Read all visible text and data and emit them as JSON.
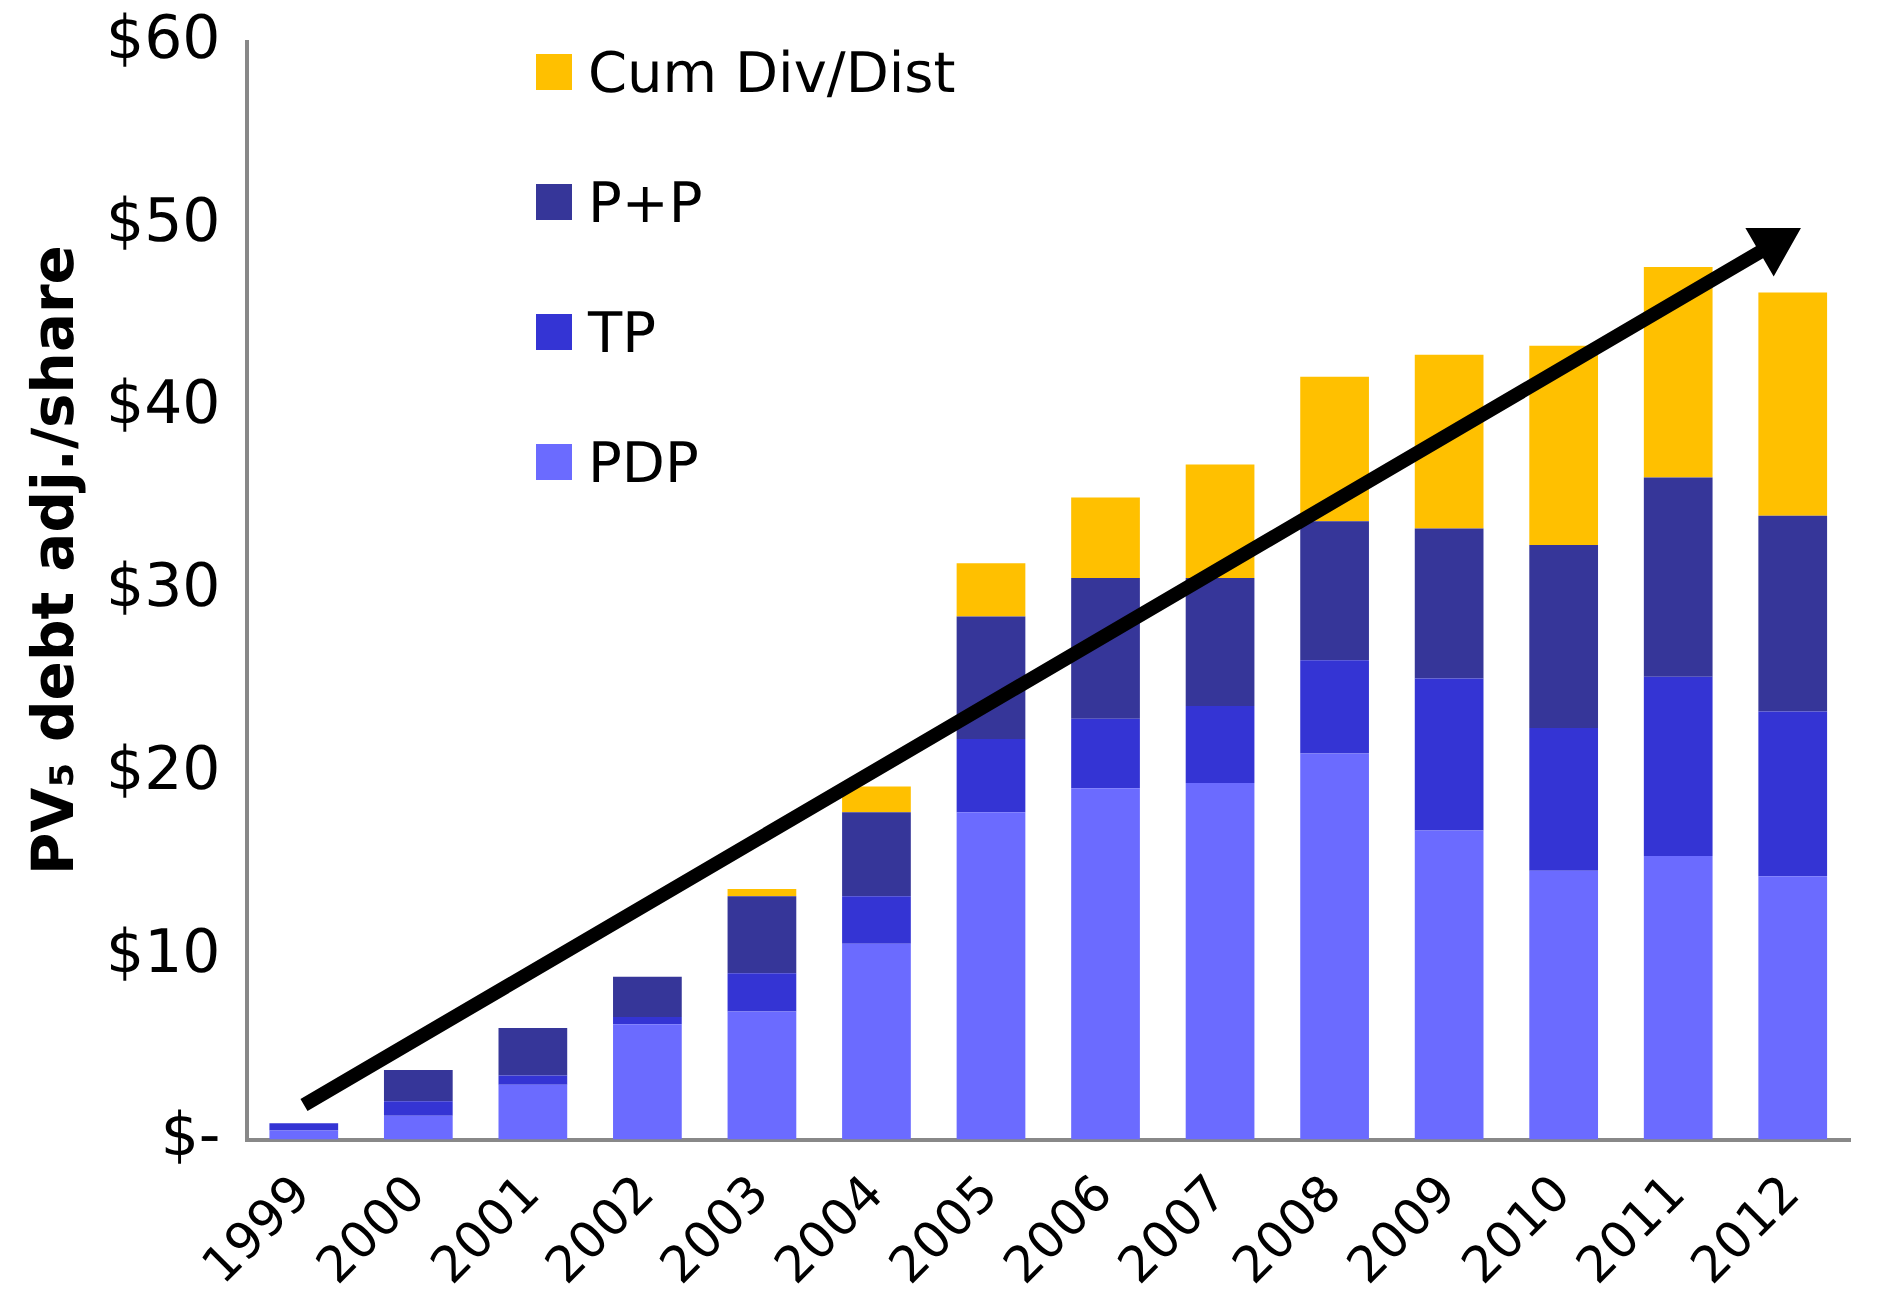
{
  "chart_data": {
    "type": "bar",
    "stacked": true,
    "ylabel": "PV₅ debt adj./share",
    "categories": [
      "1999",
      "2000",
      "2001",
      "2002",
      "2003",
      "2004",
      "2005",
      "2006",
      "2007",
      "2008",
      "2009",
      "2010",
      "2011",
      "2012"
    ],
    "series": [
      {
        "name": "PDP",
        "color": "#6b6bff",
        "values": [
          0.5,
          1.3,
          3.0,
          6.3,
          7.0,
          10.7,
          17.9,
          19.2,
          19.5,
          21.1,
          16.9,
          14.7,
          15.5,
          14.4
        ]
      },
      {
        "name": "TP",
        "color": "#3434d4",
        "values": [
          0.4,
          0.8,
          0.5,
          0.4,
          2.1,
          2.6,
          4.0,
          3.8,
          4.2,
          5.1,
          8.3,
          7.8,
          9.8,
          9.0
        ]
      },
      {
        "name": "P+P",
        "color": "#363699",
        "values": [
          0,
          1.7,
          2.6,
          2.2,
          4.2,
          4.6,
          6.7,
          7.7,
          7.0,
          7.6,
          8.2,
          10.0,
          10.9,
          10.7
        ]
      },
      {
        "name": "Cum Div/Dist",
        "color": "#ffc000",
        "values": [
          0,
          0,
          0,
          0,
          0.4,
          1.4,
          2.9,
          4.4,
          6.2,
          7.9,
          9.5,
          10.9,
          11.5,
          12.2
        ]
      }
    ],
    "ylim": [
      0,
      60
    ],
    "yticks": [
      {
        "value": 0,
        "label": "$-"
      },
      {
        "value": 10,
        "label": "$10"
      },
      {
        "value": 20,
        "label": "$20"
      },
      {
        "value": 30,
        "label": "$30"
      },
      {
        "value": 40,
        "label": "$40"
      },
      {
        "value": 50,
        "label": "$50"
      },
      {
        "value": 60,
        "label": "$60"
      }
    ],
    "grid": false,
    "legend": "top left"
  }
}
